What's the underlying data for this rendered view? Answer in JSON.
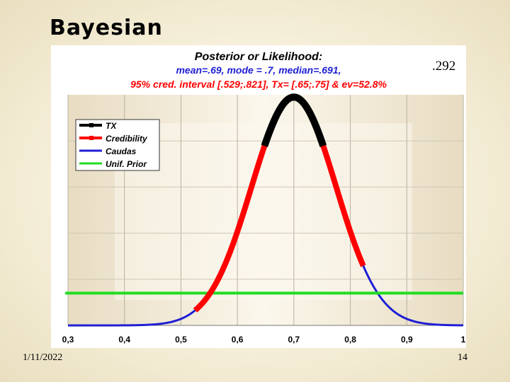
{
  "slide": {
    "title": "Bayesian",
    "side_label": ".292",
    "date": "1/11/2022",
    "page_number": "14"
  },
  "chart_data": {
    "type": "line",
    "title": "Posterior or Likelihood:",
    "subtitle_line1": "mean=.69,  mode = .7,  median=.691,",
    "subtitle_line2": "95% cred. interval [.529;.821],  Tx= [.65;.75] & ev=52.8%",
    "xlabel": "",
    "ylabel": "",
    "xlim": [
      0.3,
      1.0
    ],
    "ylim": [
      0,
      1.0
    ],
    "x_tick_labels": [
      "0,3",
      "0,4",
      "0,5",
      "0,6",
      "0,7",
      "0,8",
      "0,9",
      "1"
    ],
    "grid": true,
    "legend_position": "top-left",
    "posterior": {
      "mode": 0.7,
      "sd": 0.075
    },
    "series": [
      {
        "name": "TX",
        "color": "#000000",
        "x_range": [
          0.65,
          0.75
        ]
      },
      {
        "name": "Credibility",
        "color": "#ff0000",
        "x_range": [
          0.529,
          0.821
        ]
      },
      {
        "name": "Caudas",
        "color": "#1f1fd6",
        "x_range": [
          0.3,
          1.0
        ]
      },
      {
        "name": "Unif. Prior",
        "color": "#22dd22",
        "y": 0.14
      }
    ],
    "colors": {
      "title": "#000000",
      "subtitle_line1": "#1f1fd6",
      "subtitle_line2": "#ff0000"
    }
  }
}
